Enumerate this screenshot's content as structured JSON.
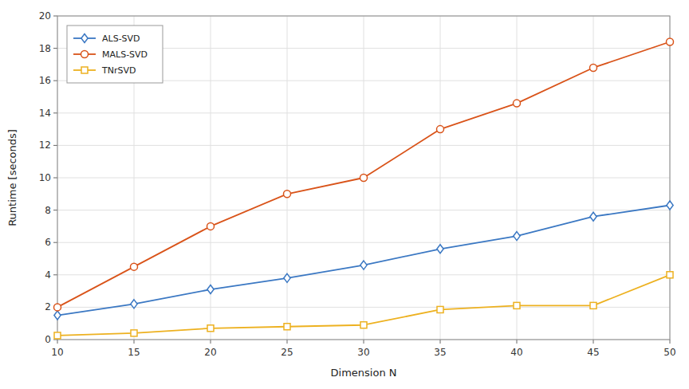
{
  "chart_data": {
    "type": "line",
    "xlabel": "Dimension N",
    "ylabel": "Runtime [seconds]",
    "x": [
      10,
      15,
      20,
      25,
      30,
      35,
      40,
      45,
      50
    ],
    "series": [
      {
        "name": "ALS-SVD",
        "color": "#3b78c3",
        "marker": "diamond",
        "values": [
          1.5,
          2.2,
          3.1,
          3.8,
          4.6,
          5.6,
          6.4,
          7.6,
          8.3
        ]
      },
      {
        "name": "MALS-SVD",
        "color": "#d95319",
        "marker": "circle",
        "values": [
          2.0,
          4.5,
          7.0,
          9.0,
          10.0,
          13.0,
          14.6,
          16.8,
          18.4
        ]
      },
      {
        "name": "TNrSVD",
        "color": "#edb120",
        "marker": "square",
        "values": [
          0.25,
          0.4,
          0.7,
          0.8,
          0.9,
          1.85,
          2.1,
          2.1,
          4.0
        ]
      }
    ],
    "xlim": [
      10,
      50
    ],
    "ylim": [
      0,
      20
    ],
    "xticks": [
      10,
      15,
      20,
      25,
      30,
      35,
      40,
      45,
      50
    ],
    "yticks": [
      0,
      2,
      4,
      6,
      8,
      10,
      12,
      14,
      16,
      18,
      20
    ],
    "grid": true,
    "legend": "upper left"
  }
}
